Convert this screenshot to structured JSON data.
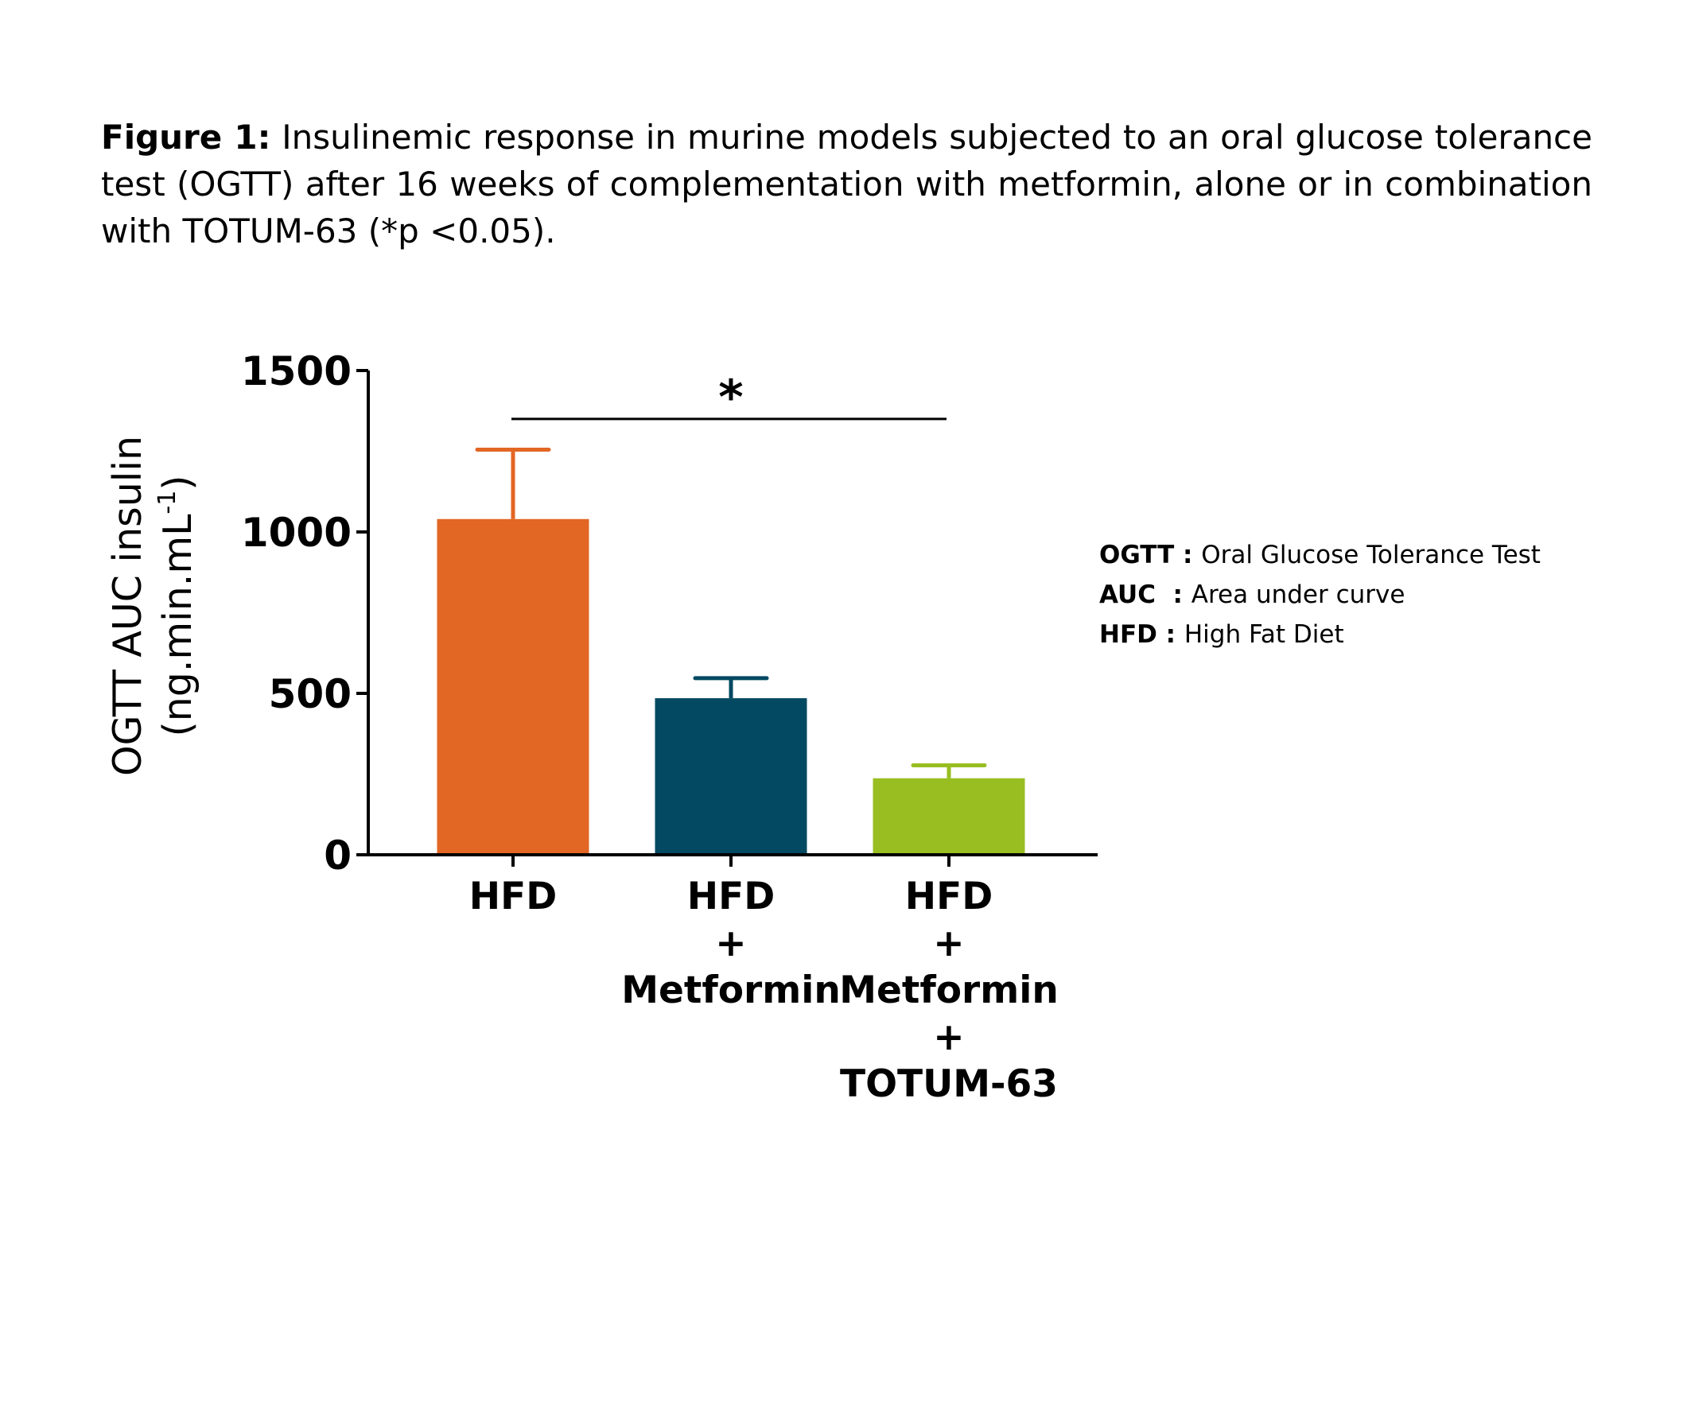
{
  "caption": {
    "label": "Figure 1:",
    "text": " Insulinemic response in murine models subjected to an oral glucose tolerance test (OGTT) after 16 weeks of complementation with metformin, alone or in combination with TOTUM-63 (*p <0.05)."
  },
  "chart_data": {
    "type": "bar",
    "categories": [
      [
        "HFD"
      ],
      [
        "HFD",
        "+",
        "Metformin"
      ],
      [
        "HFD",
        "+",
        "Metformin",
        "+",
        "TOTUM-63"
      ]
    ],
    "values": [
      1040,
      485,
      237
    ],
    "error": [
      215,
      62,
      40
    ],
    "colors": [
      "#e26624",
      "#034961",
      "#98be22"
    ],
    "ylabel": "OGTT AUC insulin",
    "ylabel_unit": {
      "prefix": "(ng.min.mL",
      "superscript": "-1",
      "suffix": ")"
    },
    "ylim": [
      0,
      1500
    ],
    "yticks": [
      0,
      500,
      1000,
      1500
    ],
    "ytick_labels": [
      "0",
      "500",
      "1000",
      "1500"
    ],
    "significance": {
      "from": 0,
      "to": 2,
      "level": 1350,
      "label": "*"
    },
    "grid": false
  },
  "legend": [
    {
      "term": "OGTT : ",
      "desc": "Oral Glucose Tolerance Test"
    },
    {
      "term": "AUC  : ",
      "desc": "Area under curve"
    },
    {
      "term": "HFD : ",
      "desc": "High Fat Diet"
    }
  ]
}
